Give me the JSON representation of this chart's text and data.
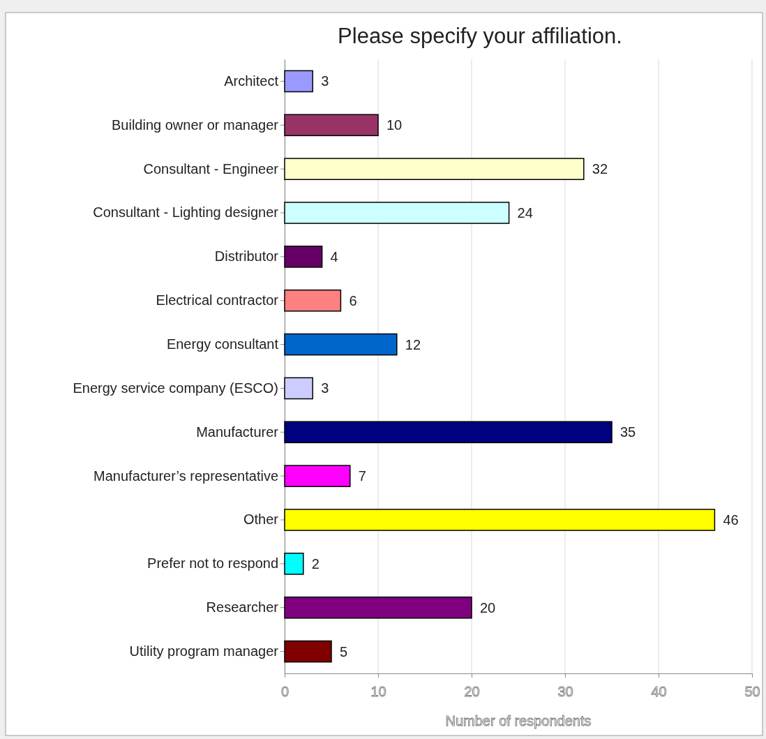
{
  "chart_data": {
    "type": "bar",
    "orientation": "horizontal",
    "title": "Please specify your affiliation.",
    "xlabel": "Number of respondents",
    "categories": [
      "Architect",
      "Building owner or manager",
      "Consultant - Engineer",
      "Consultant - Lighting designer",
      "Distributor",
      "Electrical contractor",
      "Energy consultant",
      "Energy service company (ESCO)",
      "Manufacturer",
      "Manufacturer’s representative",
      "Other",
      "Prefer not to respond",
      "Researcher",
      "Utility program manager"
    ],
    "values": [
      3,
      10,
      32,
      24,
      4,
      6,
      12,
      3,
      35,
      7,
      46,
      2,
      20,
      5
    ],
    "colors": [
      "#9999ff",
      "#993366",
      "#ffffcc",
      "#ccffff",
      "#660066",
      "#ff8080",
      "#0066cc",
      "#ccccff",
      "#000080",
      "#ff00ff",
      "#ffff00",
      "#00ffff",
      "#800080",
      "#800000"
    ],
    "xlim": [
      0,
      50
    ],
    "xticks": [
      0,
      10,
      20,
      30,
      40,
      50
    ],
    "grid": "x",
    "data_labels": true
  }
}
